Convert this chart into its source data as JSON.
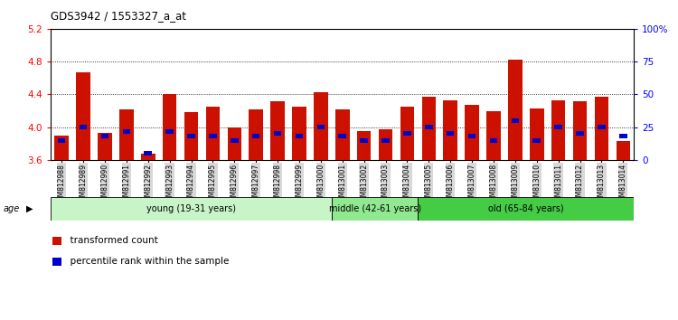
{
  "title": "GDS3942 / 1553327_a_at",
  "samples": [
    "GSM812988",
    "GSM812989",
    "GSM812990",
    "GSM812991",
    "GSM812992",
    "GSM812993",
    "GSM812994",
    "GSM812995",
    "GSM812996",
    "GSM812997",
    "GSM812998",
    "GSM812999",
    "GSM813000",
    "GSM813001",
    "GSM813002",
    "GSM813003",
    "GSM813004",
    "GSM813005",
    "GSM813006",
    "GSM813007",
    "GSM813008",
    "GSM813009",
    "GSM813010",
    "GSM813011",
    "GSM813012",
    "GSM813013",
    "GSM813014"
  ],
  "transformed_count": [
    3.9,
    4.67,
    3.93,
    4.22,
    3.68,
    4.4,
    4.18,
    4.25,
    4.0,
    4.22,
    4.32,
    4.25,
    4.43,
    4.22,
    3.95,
    3.98,
    4.25,
    4.37,
    4.33,
    4.27,
    4.19,
    4.82,
    4.23,
    4.33,
    4.32,
    4.37,
    3.83
  ],
  "percentile_rank": [
    15,
    25,
    18,
    22,
    5,
    22,
    18,
    18,
    15,
    18,
    20,
    18,
    25,
    18,
    15,
    15,
    20,
    25,
    20,
    18,
    15,
    30,
    15,
    25,
    20,
    25,
    18
  ],
  "groups": [
    {
      "label": "young (19-31 years)",
      "start": 0,
      "end": 13,
      "color": "#c8f5c8"
    },
    {
      "label": "middle (42-61 years)",
      "start": 13,
      "end": 17,
      "color": "#90e890"
    },
    {
      "label": "old (65-84 years)",
      "start": 17,
      "end": 27,
      "color": "#44cc44"
    }
  ],
  "ylim_left": [
    3.6,
    5.2
  ],
  "ylim_right": [
    0,
    100
  ],
  "yticks_left": [
    3.6,
    4.0,
    4.4,
    4.8,
    5.2
  ],
  "yticks_right": [
    0,
    25,
    50,
    75,
    100
  ],
  "ytick_labels_right": [
    "0",
    "25",
    "50",
    "75",
    "100%"
  ],
  "bar_color": "#cc1100",
  "percentile_color": "#0000cc",
  "bar_width": 0.65,
  "grid_color": "#000000",
  "legend_items": [
    "transformed count",
    "percentile rank within the sample"
  ],
  "legend_colors": [
    "#cc1100",
    "#0000cc"
  ]
}
